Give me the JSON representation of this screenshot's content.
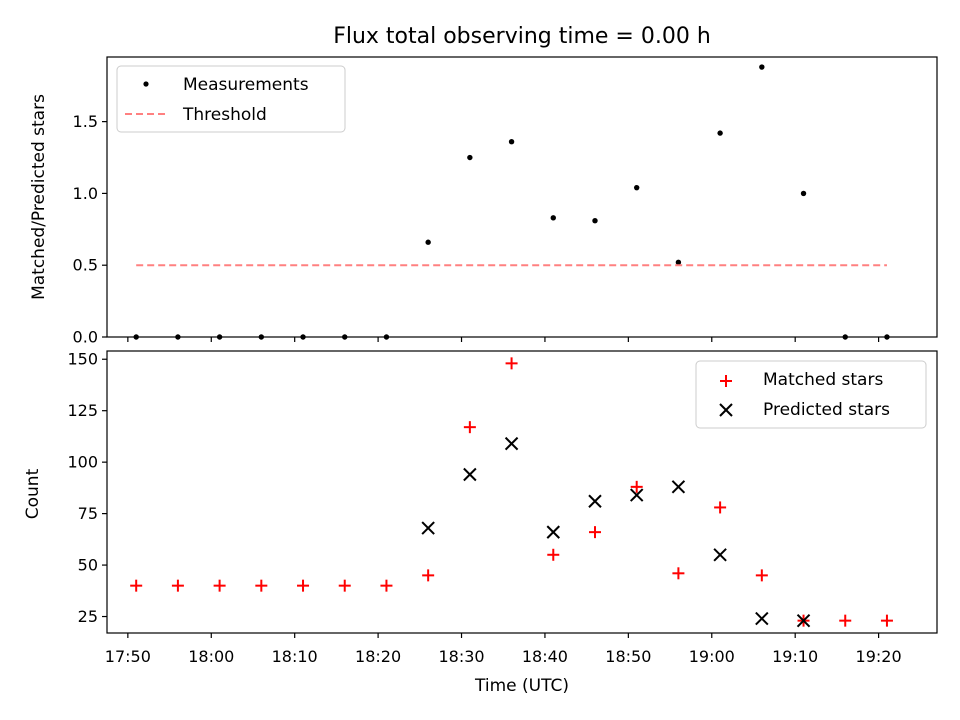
{
  "title": "Flux total observing time = 0.00 h",
  "x_tick_labels": [
    "17:50",
    "18:00",
    "18:10",
    "18:20",
    "18:30",
    "18:40",
    "18:50",
    "19:00",
    "19:10",
    "19:20"
  ],
  "x_tick_minutes": [
    1070,
    1080,
    1090,
    1100,
    1110,
    1120,
    1130,
    1140,
    1150,
    1160
  ],
  "xlabel": "Time (UTC)",
  "chart_data": [
    {
      "type": "scatter",
      "ylabel": "Matched/Predicted stars",
      "xlim_minutes": [
        1067.5,
        1167.0
      ],
      "ylim": [
        0,
        1.95
      ],
      "yticks": [
        0.0,
        0.5,
        1.0,
        1.5
      ],
      "ytick_labels": [
        "0.0",
        "0.5",
        "1.0",
        "1.5"
      ],
      "legend_position": "top-left",
      "series": [
        {
          "name": "Measurements",
          "marker": "dot",
          "color": "#000000",
          "x": [
            "17:51",
            "17:56",
            "18:01",
            "18:06",
            "18:11",
            "18:16",
            "18:21",
            "18:26",
            "18:31",
            "18:36",
            "18:41",
            "18:46",
            "18:51",
            "18:56",
            "19:01",
            "19:06",
            "19:11",
            "19:16",
            "19:21"
          ],
          "y": [
            0,
            0,
            0,
            0,
            0,
            0,
            0,
            0.66,
            1.25,
            1.36,
            0.83,
            0.81,
            1.04,
            0.52,
            1.42,
            1.88,
            1.0,
            0,
            0
          ]
        },
        {
          "name": "Threshold",
          "marker": "dashed-line",
          "color": "#ff8080",
          "x": [
            "17:51",
            "19:21"
          ],
          "y": [
            0.5,
            0.5
          ]
        }
      ]
    },
    {
      "type": "scatter",
      "ylabel": "Count",
      "xlim_minutes": [
        1067.5,
        1167.0
      ],
      "ylim": [
        17,
        154
      ],
      "yticks": [
        25,
        50,
        75,
        100,
        125,
        150
      ],
      "ytick_labels": [
        "25",
        "50",
        "75",
        "100",
        "125",
        "150"
      ],
      "legend_position": "top-right",
      "series": [
        {
          "name": "Matched stars",
          "marker": "plus",
          "color": "#ff0000",
          "x": [
            "17:51",
            "17:56",
            "18:01",
            "18:06",
            "18:11",
            "18:16",
            "18:21",
            "18:26",
            "18:31",
            "18:36",
            "18:41",
            "18:46",
            "18:51",
            "18:56",
            "19:01",
            "19:06",
            "19:11",
            "19:16",
            "19:21"
          ],
          "y": [
            40,
            40,
            40,
            40,
            40,
            40,
            40,
            45,
            117,
            148,
            55,
            66,
            88,
            46,
            78,
            45,
            23,
            23,
            23
          ]
        },
        {
          "name": "Predicted stars",
          "marker": "x",
          "color": "#000000",
          "x": [
            "18:26",
            "18:31",
            "18:36",
            "18:41",
            "18:46",
            "18:51",
            "18:56",
            "19:01",
            "19:06",
            "19:11"
          ],
          "y": [
            68,
            94,
            109,
            66,
            81,
            84,
            88,
            55,
            24,
            23
          ]
        }
      ]
    }
  ]
}
